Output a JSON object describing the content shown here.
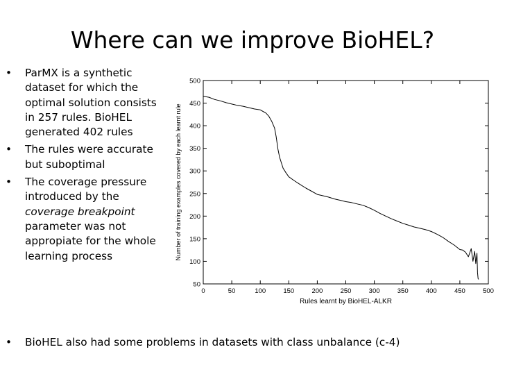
{
  "slide": {
    "title": "Where can we improve BioHEL?",
    "bullet_glyph": "•",
    "bullets": [
      {
        "text": "ParMX is a synthetic dataset for which the optimal solution consists in 257 rules. BioHEL generated 402 rules"
      },
      {
        "text": "The rules were accurate but suboptimal"
      },
      {
        "pre": "The coverage pressure introduced by the ",
        "em": "coverage breakpoint",
        "post": " parameter was not appropiate for the whole learning process"
      }
    ],
    "bottom_bullet": "BioHEL also had some problems in datasets with class unbalance (c-4)"
  },
  "chart_data": {
    "type": "line",
    "xlabel": "Rules learnt by BioHEL-ALKR",
    "ylabel": "Number of training examples covered by each learnt rule",
    "xlim": [
      0,
      500
    ],
    "ylim": [
      50,
      500
    ],
    "xticks": [
      0,
      50,
      100,
      150,
      200,
      250,
      300,
      350,
      400,
      450,
      500
    ],
    "yticks": [
      50,
      100,
      150,
      200,
      250,
      300,
      350,
      400,
      450,
      500
    ],
    "grid": false,
    "legend": "none",
    "line_color": "#000000",
    "series": [
      {
        "x": [
          0,
          10,
          20,
          30,
          40,
          50,
          60,
          70,
          80,
          90,
          100,
          110,
          115,
          120,
          125,
          128,
          131,
          134,
          137,
          140,
          145,
          150,
          160,
          170,
          180,
          190,
          200,
          210,
          220,
          230,
          240,
          250,
          260,
          270,
          280,
          290,
          300,
          310,
          320,
          330,
          340,
          350,
          360,
          370,
          380,
          390,
          400,
          410,
          420,
          430,
          440,
          450,
          455,
          460,
          465,
          470,
          473,
          476,
          478,
          480,
          481,
          482,
          483
        ],
        "y": [
          465,
          463,
          458,
          455,
          451,
          448,
          445,
          443,
          440,
          437,
          435,
          428,
          421,
          410,
          395,
          375,
          348,
          330,
          318,
          306,
          296,
          287,
          278,
          270,
          262,
          255,
          248,
          245,
          242,
          238,
          235,
          232,
          230,
          227,
          224,
          219,
          213,
          206,
          200,
          194,
          189,
          184,
          180,
          176,
          173,
          170,
          166,
          160,
          153,
          144,
          136,
          126,
          125,
          120,
          110,
          128,
          100,
          122,
          95,
          118,
          75,
          62,
          60
        ]
      }
    ]
  }
}
